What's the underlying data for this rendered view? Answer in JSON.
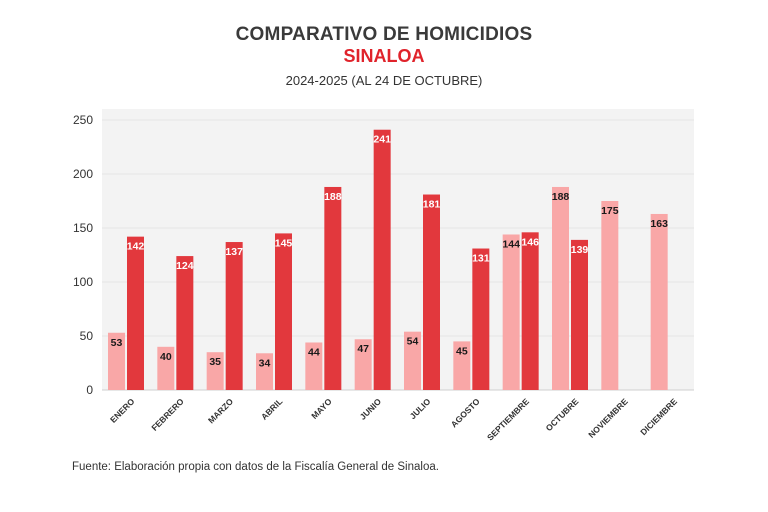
{
  "header": {
    "title": "COMPARATIVO DE HOMICIDIOS",
    "subtitle": "SINALOA",
    "period": "2024-2025 (AL 24 DE OCTUBRE)"
  },
  "footer": {
    "source": "Fuente: Elaboración propia con datos de la Fiscalía General de Sinaloa."
  },
  "chart_data": {
    "type": "bar",
    "title": "COMPARATIVO DE HOMICIDIOS",
    "subtitle": "SINALOA",
    "categories": [
      "ENERO",
      "FEBRERO",
      "MARZO",
      "ABRIL",
      "MAYO",
      "JUNIO",
      "JULIO",
      "AGOSTO",
      "SEPTIEMBRE",
      "OCTUBRE",
      "NOVIEMBRE",
      "DICIEMBRE"
    ],
    "series": [
      {
        "color": "#f9a7a7",
        "values": [
          53,
          40,
          35,
          34,
          44,
          47,
          54,
          45,
          144,
          188,
          175,
          163
        ]
      },
      {
        "color": "#e2383d",
        "values": [
          142,
          124,
          137,
          145,
          188,
          241,
          181,
          131,
          146,
          139,
          null,
          null
        ]
      }
    ],
    "y_ticks": [
      0,
      50,
      100,
      150,
      200,
      250
    ],
    "ylim": [
      0,
      250
    ],
    "grid": true,
    "xlabel": "",
    "ylabel": ""
  },
  "colors": {
    "plot_background": "#f3f3f3",
    "title_accent": "#e0232b"
  }
}
